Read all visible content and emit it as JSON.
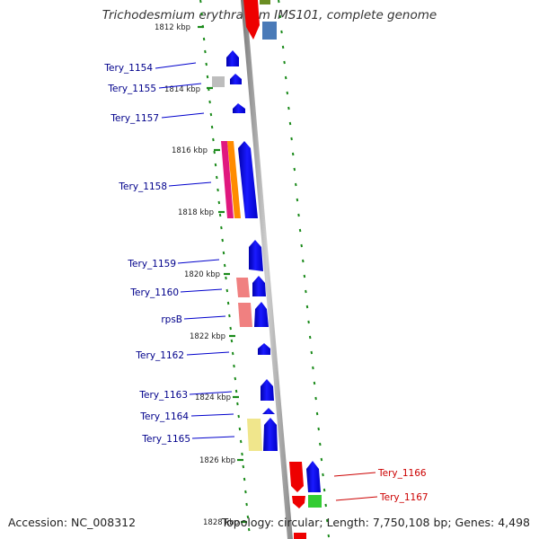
{
  "title": "Trichodesmium erythraeum IMS101, complete genome",
  "accession": "Accession: NC_008312",
  "topology": "Topology: circular; Length: 7,750,108 bp; Genes: 4,498",
  "colors": {
    "forward_gene": "#0000ee",
    "label_blue": "#00008b",
    "label_red": "#cc0000",
    "ticks": "#1a8a1a",
    "backbone": "#999999"
  },
  "kbp_labels": [
    "1812 kbp",
    "1814 kbp",
    "1816 kbp",
    "1818 kbp",
    "1820 kbp",
    "1822 kbp",
    "1824 kbp",
    "1826 kbp",
    "1828 kbp"
  ],
  "gene_labels_left": [
    "Tery_1154",
    "Tery_1155",
    "Tery_1157",
    "Tery_1158",
    "Tery_1159",
    "Tery_1160",
    "rpsB",
    "Tery_1162",
    "Tery_1163",
    "Tery_1164",
    "Tery_1165"
  ],
  "gene_labels_right": [
    "Tery_1166",
    "Tery_1167"
  ]
}
